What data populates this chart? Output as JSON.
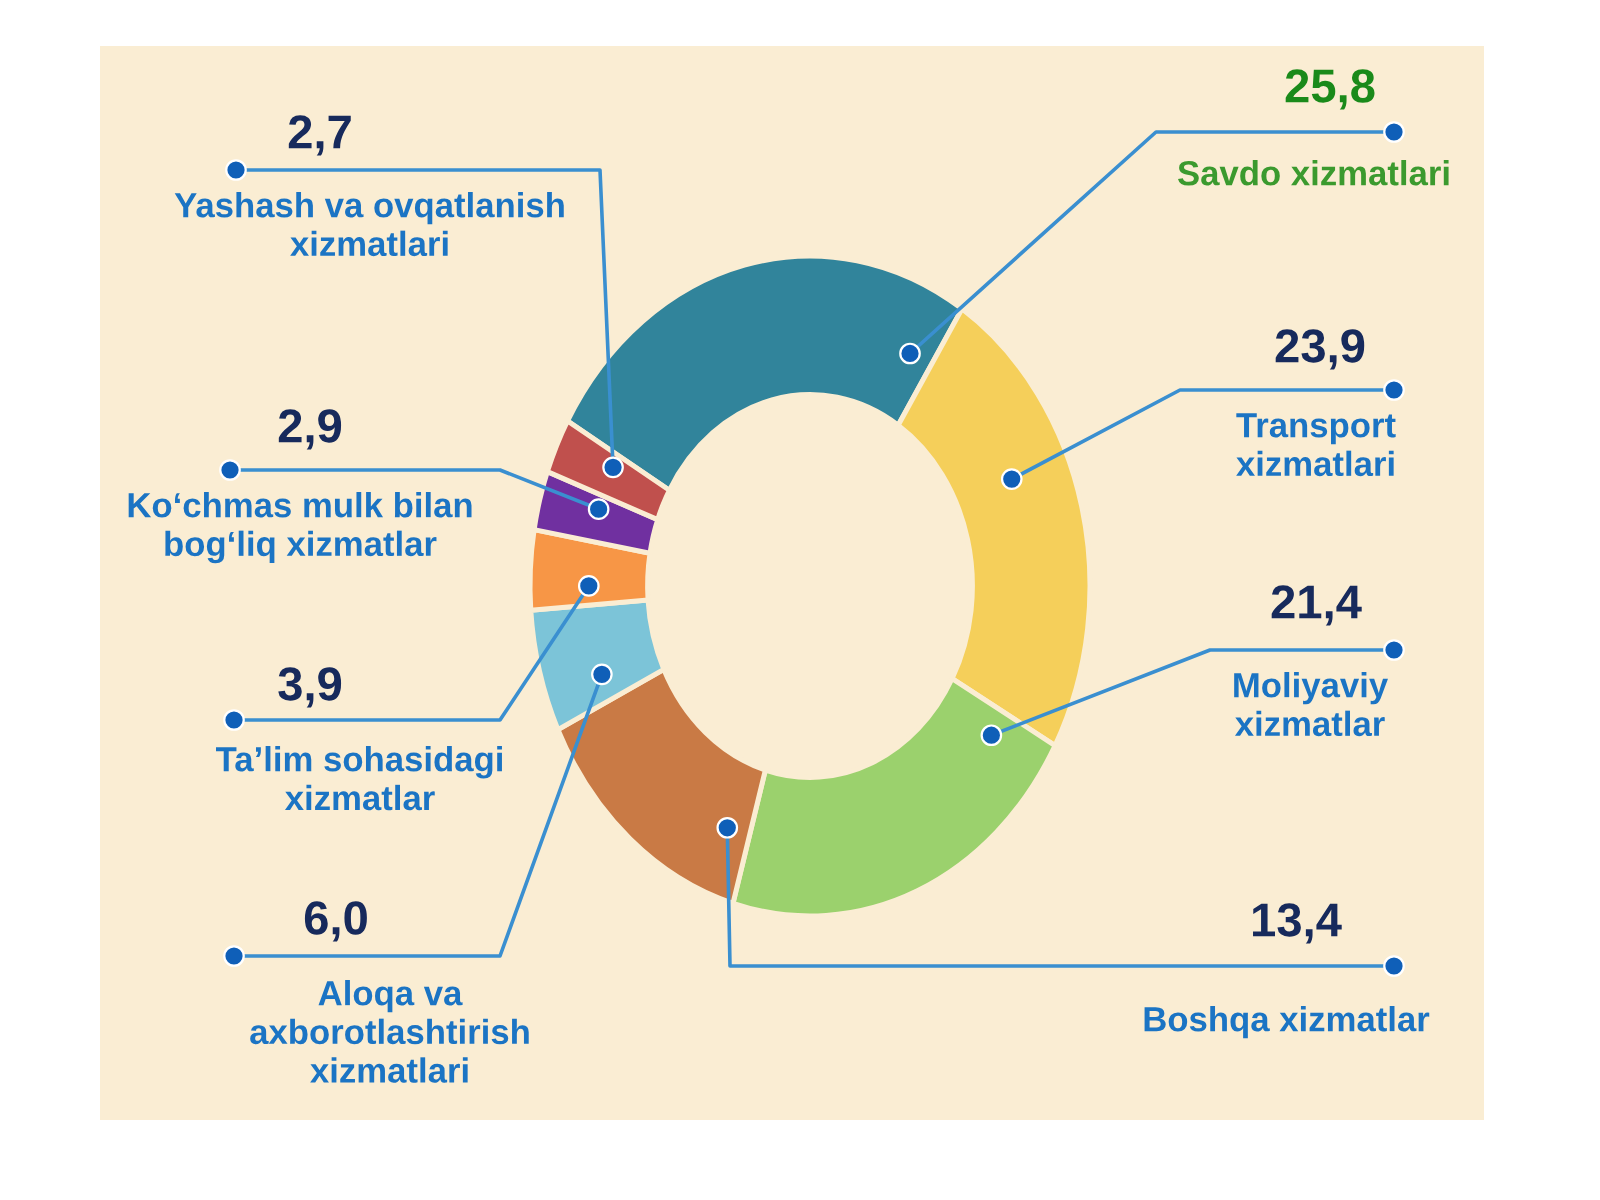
{
  "chart_data": {
    "type": "donut",
    "categories": [
      "Savdo xizmatlari",
      "Transport\nxizmatlari",
      "Moliyaviy\nxizmatlar",
      "Boshqa xizmatlar",
      "Aloqa va\naxborotlashtirish\nxizmatlari",
      "Ta’lim sohasidagi\nxizmatlar",
      "Ko‘chmas mulk bilan\nbog‘liq xizmatlar",
      "Yashash va ovqatlanish\nxizmatlari"
    ],
    "values": [
      25.8,
      23.9,
      21.4,
      13.4,
      6.0,
      3.9,
      2.9,
      2.7
    ],
    "value_labels": [
      "25,8",
      "23,9",
      "21,4",
      "13,4",
      "6,0",
      "3,9",
      "2,9",
      "2,7"
    ],
    "colors": [
      "#31849b",
      "#f5cf5a",
      "#9bd16d",
      "#c97a45",
      "#7cc4d8",
      "#f79646",
      "#7030a0",
      "#c0504d"
    ]
  }
}
